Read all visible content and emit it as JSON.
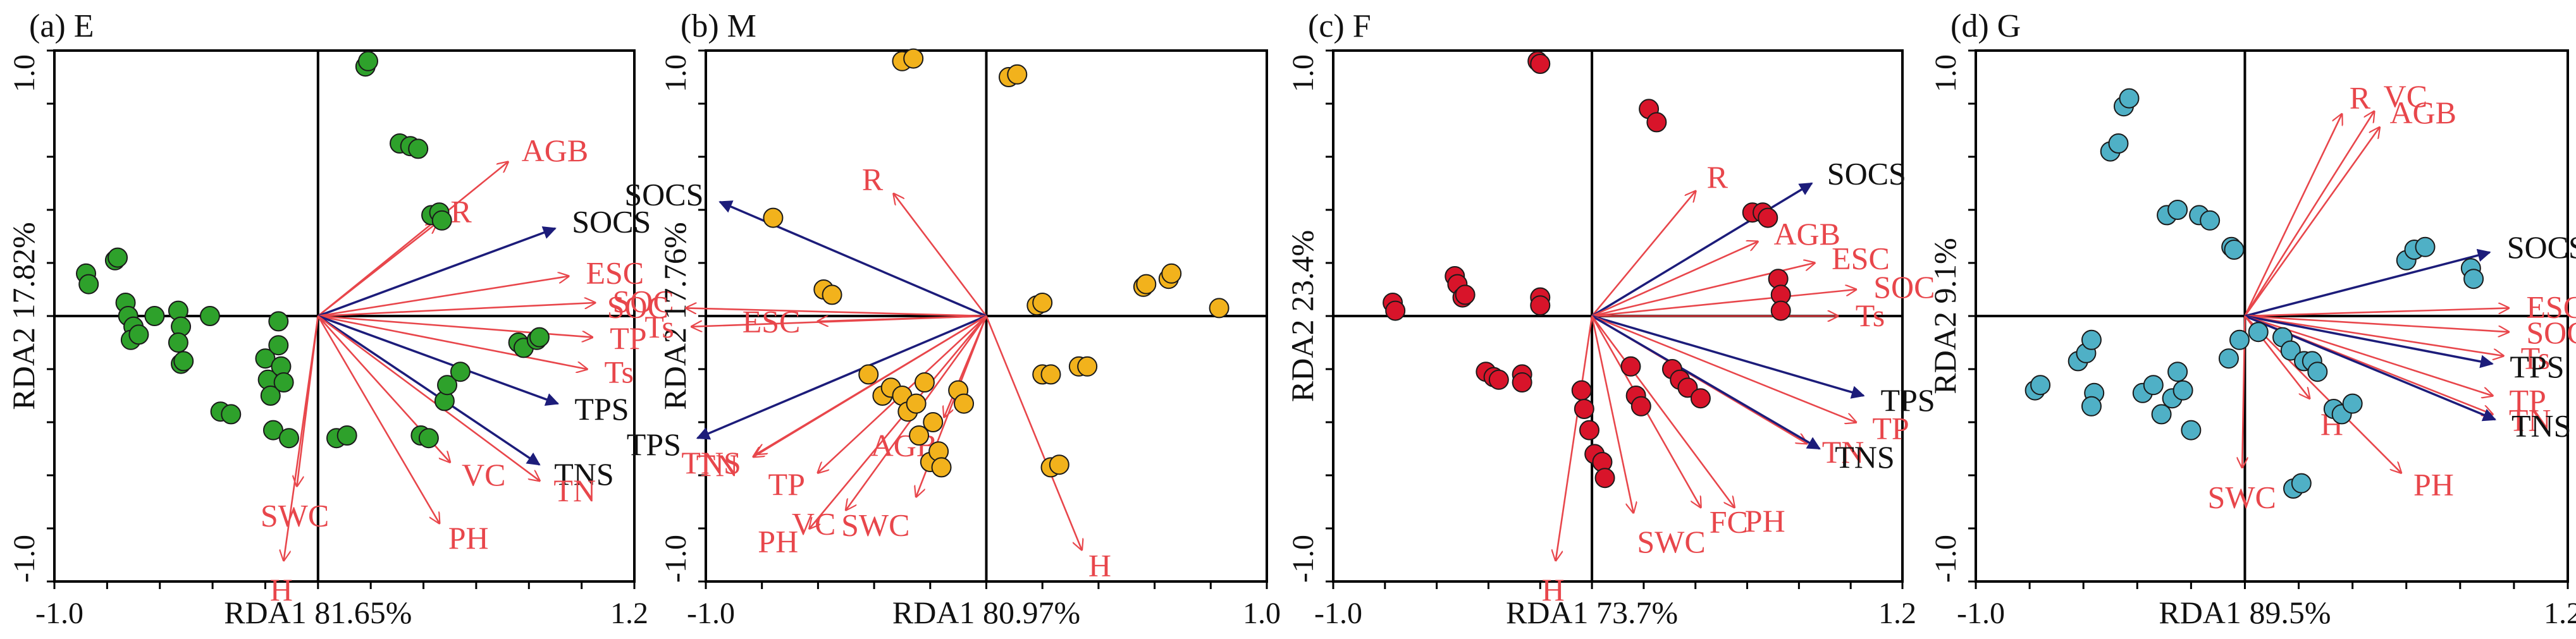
{
  "colors": {
    "explanatory": "#e8464b",
    "response": "#1c1c7a",
    "label_response": "#111111"
  },
  "chart_data": [
    {
      "type": "scatter",
      "panel_label": "(a) E",
      "xlabel": "RDA1 81.65%",
      "ylabel": "RDA2 17.82%",
      "xtick_labels": [
        "-1.0",
        "1.2"
      ],
      "ytick_labels": [
        "1.0",
        "-1.0"
      ],
      "xlim": [
        -1.0,
        1.2
      ],
      "ylim": [
        -1.0,
        1.0
      ],
      "point_color": "#2ea12b",
      "points": [
        [
          -0.88,
          0.16
        ],
        [
          -0.87,
          0.12
        ],
        [
          -0.77,
          0.21
        ],
        [
          -0.76,
          0.22
        ],
        [
          -0.73,
          0.05
        ],
        [
          -0.72,
          0.0
        ],
        [
          -0.7,
          -0.04
        ],
        [
          -0.71,
          -0.09
        ],
        [
          -0.68,
          -0.07
        ],
        [
          -0.62,
          0.0
        ],
        [
          -0.53,
          0.02
        ],
        [
          -0.52,
          -0.04
        ],
        [
          -0.53,
          -0.1
        ],
        [
          -0.52,
          -0.18
        ],
        [
          -0.51,
          -0.17
        ],
        [
          -0.41,
          0.0
        ],
        [
          -0.37,
          -0.36
        ],
        [
          -0.33,
          -0.37
        ],
        [
          -0.2,
          -0.16
        ],
        [
          -0.19,
          -0.24
        ],
        [
          -0.18,
          -0.3
        ],
        [
          -0.17,
          -0.43
        ],
        [
          -0.15,
          -0.02
        ],
        [
          -0.15,
          -0.11
        ],
        [
          -0.14,
          -0.19
        ],
        [
          -0.13,
          -0.25
        ],
        [
          -0.11,
          -0.46
        ],
        [
          0.07,
          -0.46
        ],
        [
          0.11,
          -0.45
        ],
        [
          0.18,
          0.94
        ],
        [
          0.19,
          0.96
        ],
        [
          0.31,
          0.65
        ],
        [
          0.35,
          0.64
        ],
        [
          0.38,
          0.63
        ],
        [
          0.39,
          -0.45
        ],
        [
          0.42,
          -0.46
        ],
        [
          0.43,
          0.38
        ],
        [
          0.46,
          0.39
        ],
        [
          0.47,
          0.36
        ],
        [
          0.48,
          -0.32
        ],
        [
          0.49,
          -0.26
        ],
        [
          0.54,
          -0.21
        ],
        [
          0.76,
          -0.1
        ],
        [
          0.78,
          -0.12
        ],
        [
          0.83,
          -0.09
        ],
        [
          0.84,
          -0.08
        ]
      ],
      "vectors": [
        {
          "name": "AGB",
          "x": 0.72,
          "y": 0.58,
          "kind": "explanatory"
        },
        {
          "name": "R",
          "x": 0.45,
          "y": 0.35,
          "kind": "explanatory"
        },
        {
          "name": "SOCS",
          "x": 0.9,
          "y": 0.33,
          "kind": "response"
        },
        {
          "name": "ESC",
          "x": 0.95,
          "y": 0.15,
          "kind": "explanatory"
        },
        {
          "name": "SOC",
          "x": 1.05,
          "y": 0.05,
          "kind": "explanatory"
        },
        {
          "name": "TP",
          "x": 1.04,
          "y": -0.08,
          "kind": "explanatory"
        },
        {
          "name": "Ts",
          "x": 1.02,
          "y": -0.2,
          "kind": "explanatory"
        },
        {
          "name": "TPS",
          "x": 0.91,
          "y": -0.33,
          "kind": "response"
        },
        {
          "name": "TNS",
          "x": 0.84,
          "y": -0.56,
          "kind": "response"
        },
        {
          "name": "VC",
          "x": 0.5,
          "y": -0.55,
          "kind": "explanatory"
        },
        {
          "name": "TN",
          "x": 0.84,
          "y": -0.62,
          "kind": "explanatory"
        },
        {
          "name": "PH",
          "x": 0.46,
          "y": -0.78,
          "kind": "explanatory"
        },
        {
          "name": "SWC",
          "x": -0.08,
          "y": -0.64,
          "kind": "explanatory"
        },
        {
          "name": "H",
          "x": -0.13,
          "y": -0.92,
          "kind": "explanatory"
        }
      ]
    },
    {
      "type": "scatter",
      "panel_label": "(b) M",
      "xlabel": "RDA1 80.97%",
      "ylabel": "RDA2 17.76%",
      "xtick_labels": [
        "-1.0",
        "1.0"
      ],
      "ytick_labels": [
        "1.0",
        "-1.0"
      ],
      "xlim": [
        -1.0,
        1.0
      ],
      "ylim": [
        -1.0,
        1.0
      ],
      "point_color": "#f2b21c",
      "points": [
        [
          -0.3,
          0.96
        ],
        [
          -0.26,
          0.97
        ],
        [
          0.08,
          0.9
        ],
        [
          0.11,
          0.91
        ],
        [
          -0.76,
          0.37
        ],
        [
          -0.58,
          0.1
        ],
        [
          -0.55,
          0.08
        ],
        [
          -0.42,
          -0.22
        ],
        [
          -0.37,
          -0.3
        ],
        [
          -0.34,
          -0.27
        ],
        [
          -0.3,
          -0.3
        ],
        [
          -0.28,
          -0.36
        ],
        [
          -0.25,
          -0.33
        ],
        [
          -0.22,
          -0.25
        ],
        [
          -0.24,
          -0.45
        ],
        [
          -0.19,
          -0.4
        ],
        [
          -0.2,
          -0.55
        ],
        [
          -0.17,
          -0.51
        ],
        [
          -0.16,
          -0.57
        ],
        [
          -0.1,
          -0.28
        ],
        [
          -0.08,
          -0.33
        ],
        [
          0.18,
          0.04
        ],
        [
          0.2,
          0.05
        ],
        [
          0.2,
          -0.22
        ],
        [
          0.23,
          -0.22
        ],
        [
          0.23,
          -0.57
        ],
        [
          0.26,
          -0.56
        ],
        [
          0.33,
          -0.19
        ],
        [
          0.36,
          -0.19
        ],
        [
          0.56,
          0.11
        ],
        [
          0.57,
          0.12
        ],
        [
          0.65,
          0.14
        ],
        [
          0.66,
          0.16
        ],
        [
          0.83,
          0.03
        ]
      ],
      "vectors": [
        {
          "name": "R",
          "x": -0.33,
          "y": 0.46,
          "kind": "explanatory"
        },
        {
          "name": "SOCS",
          "x": -0.95,
          "y": 0.43,
          "kind": "response"
        },
        {
          "name": "SOC",
          "x": -1.07,
          "y": 0.03,
          "kind": "explanatory"
        },
        {
          "name": "Ts",
          "x": -1.05,
          "y": -0.04,
          "kind": "explanatory"
        },
        {
          "name": "ESC",
          "x": -0.6,
          "y": -0.02,
          "kind": "explanatory"
        },
        {
          "name": "TPS",
          "x": -1.03,
          "y": -0.46,
          "kind": "response"
        },
        {
          "name": "TNS",
          "x": -0.82,
          "y": -0.52,
          "kind": "explanatory"
        },
        {
          "name": "TN",
          "x": -0.83,
          "y": -0.53,
          "kind": "explanatory"
        },
        {
          "name": "TP",
          "x": -0.6,
          "y": -0.59,
          "kind": "explanatory"
        },
        {
          "name": "AGB",
          "x": -0.15,
          "y": -0.38,
          "kind": "explanatory"
        },
        {
          "name": "VC",
          "x": -0.5,
          "y": -0.73,
          "kind": "explanatory"
        },
        {
          "name": "PH",
          "x": -0.63,
          "y": -0.8,
          "kind": "explanatory"
        },
        {
          "name": "SWC",
          "x": -0.25,
          "y": -0.68,
          "kind": "explanatory"
        },
        {
          "name": "H",
          "x": 0.34,
          "y": -0.88,
          "kind": "explanatory"
        }
      ]
    },
    {
      "type": "scatter",
      "panel_label": "(c) F",
      "xlabel": "RDA1 73.7%",
      "ylabel": "RDA2 23.4%",
      "xtick_labels": [
        "-1.0",
        "1.2"
      ],
      "ytick_labels": [
        "1.0",
        "-1.0"
      ],
      "xlim": [
        -1.0,
        1.2
      ],
      "ylim": [
        -1.0,
        1.0
      ],
      "point_color": "#d8142a",
      "points": [
        [
          -0.77,
          0.05
        ],
        [
          -0.76,
          0.02
        ],
        [
          -0.53,
          0.15
        ],
        [
          -0.52,
          0.12
        ],
        [
          -0.5,
          0.07
        ],
        [
          -0.49,
          0.08
        ],
        [
          -0.41,
          -0.21
        ],
        [
          -0.38,
          -0.23
        ],
        [
          -0.36,
          -0.24
        ],
        [
          -0.27,
          -0.22
        ],
        [
          -0.27,
          -0.25
        ],
        [
          -0.21,
          0.96
        ],
        [
          -0.2,
          0.95
        ],
        [
          -0.2,
          0.07
        ],
        [
          -0.2,
          0.04
        ],
        [
          -0.04,
          -0.28
        ],
        [
          -0.03,
          -0.35
        ],
        [
          -0.01,
          -0.43
        ],
        [
          0.01,
          -0.52
        ],
        [
          0.04,
          -0.55
        ],
        [
          0.05,
          -0.61
        ],
        [
          0.15,
          -0.19
        ],
        [
          0.17,
          -0.3
        ],
        [
          0.19,
          -0.34
        ],
        [
          0.22,
          0.78
        ],
        [
          0.25,
          0.73
        ],
        [
          0.31,
          -0.2
        ],
        [
          0.34,
          -0.24
        ],
        [
          0.37,
          -0.27
        ],
        [
          0.42,
          -0.31
        ],
        [
          0.62,
          0.39
        ],
        [
          0.66,
          0.39
        ],
        [
          0.68,
          0.37
        ],
        [
          0.72,
          0.14
        ],
        [
          0.73,
          0.08
        ],
        [
          0.73,
          0.02
        ]
      ],
      "vectors": [
        {
          "name": "R",
          "x": 0.4,
          "y": 0.47,
          "kind": "explanatory"
        },
        {
          "name": "SOCS",
          "x": 0.85,
          "y": 0.5,
          "kind": "response"
        },
        {
          "name": "AGB",
          "x": 0.64,
          "y": 0.28,
          "kind": "explanatory"
        },
        {
          "name": "ESC",
          "x": 0.86,
          "y": 0.2,
          "kind": "explanatory"
        },
        {
          "name": "SOC",
          "x": 1.02,
          "y": 0.1,
          "kind": "explanatory"
        },
        {
          "name": "Ts",
          "x": 0.95,
          "y": 0.0,
          "kind": "explanatory"
        },
        {
          "name": "TPS",
          "x": 1.05,
          "y": -0.3,
          "kind": "response"
        },
        {
          "name": "TP",
          "x": 1.02,
          "y": -0.4,
          "kind": "explanatory"
        },
        {
          "name": "TN",
          "x": 0.83,
          "y": -0.48,
          "kind": "explanatory"
        },
        {
          "name": "TNS",
          "x": 0.88,
          "y": -0.5,
          "kind": "response"
        },
        {
          "name": "PH",
          "x": 0.55,
          "y": -0.72,
          "kind": "explanatory"
        },
        {
          "name": "FC",
          "x": 0.42,
          "y": -0.72,
          "kind": "explanatory"
        },
        {
          "name": "SWC",
          "x": 0.16,
          "y": -0.74,
          "kind": "explanatory"
        },
        {
          "name": "H",
          "x": -0.14,
          "y": -0.92,
          "kind": "explanatory"
        }
      ]
    },
    {
      "type": "scatter",
      "panel_label": "(d) G",
      "xlabel": "RDA1 89.5%",
      "ylabel": "RDA2 9.1%",
      "xtick_labels": [
        "-1.0",
        "1.2"
      ],
      "ytick_labels": [
        "1.0",
        "-1.0"
      ],
      "xlim": [
        -1.0,
        1.2
      ],
      "ylim": [
        -1.0,
        1.0
      ],
      "point_color": "#4fb0c6",
      "points": [
        [
          -0.45,
          0.79
        ],
        [
          -0.43,
          0.82
        ],
        [
          -0.5,
          0.62
        ],
        [
          -0.47,
          0.65
        ],
        [
          -0.29,
          0.38
        ],
        [
          -0.25,
          0.4
        ],
        [
          -0.17,
          0.38
        ],
        [
          -0.13,
          0.36
        ],
        [
          -0.05,
          0.26
        ],
        [
          -0.04,
          0.25
        ],
        [
          -0.78,
          -0.28
        ],
        [
          -0.76,
          -0.26
        ],
        [
          -0.62,
          -0.17
        ],
        [
          -0.59,
          -0.14
        ],
        [
          -0.57,
          -0.09
        ],
        [
          -0.56,
          -0.29
        ],
        [
          -0.57,
          -0.34
        ],
        [
          -0.38,
          -0.29
        ],
        [
          -0.34,
          -0.26
        ],
        [
          -0.31,
          -0.37
        ],
        [
          -0.27,
          -0.31
        ],
        [
          -0.25,
          -0.21
        ],
        [
          -0.23,
          -0.28
        ],
        [
          -0.2,
          -0.43
        ],
        [
          -0.06,
          -0.16
        ],
        [
          -0.02,
          -0.09
        ],
        [
          0.05,
          -0.06
        ],
        [
          0.14,
          -0.08
        ],
        [
          0.17,
          -0.13
        ],
        [
          0.22,
          -0.17
        ],
        [
          0.25,
          -0.17
        ],
        [
          0.27,
          -0.21
        ],
        [
          0.33,
          -0.35
        ],
        [
          0.36,
          -0.37
        ],
        [
          0.4,
          -0.33
        ],
        [
          0.18,
          -0.65
        ],
        [
          0.21,
          -0.63
        ],
        [
          0.6,
          0.21
        ],
        [
          0.63,
          0.25
        ],
        [
          0.67,
          0.26
        ],
        [
          0.84,
          0.18
        ],
        [
          0.85,
          0.14
        ]
      ],
      "vectors": [
        {
          "name": "R",
          "x": 0.36,
          "y": 0.76,
          "kind": "explanatory"
        },
        {
          "name": "VC",
          "x": 0.48,
          "y": 0.77,
          "kind": "explanatory"
        },
        {
          "name": "AGB",
          "x": 0.5,
          "y": 0.71,
          "kind": "explanatory"
        },
        {
          "name": "SOCS",
          "x": 0.91,
          "y": 0.24,
          "kind": "response"
        },
        {
          "name": "ESC",
          "x": 0.98,
          "y": 0.03,
          "kind": "explanatory"
        },
        {
          "name": "SOC",
          "x": 0.98,
          "y": -0.06,
          "kind": "explanatory"
        },
        {
          "name": "Ts",
          "x": 0.96,
          "y": -0.15,
          "kind": "explanatory"
        },
        {
          "name": "TPS",
          "x": 0.92,
          "y": -0.18,
          "kind": "response"
        },
        {
          "name": "TP",
          "x": 0.92,
          "y": -0.3,
          "kind": "explanatory"
        },
        {
          "name": "TN",
          "x": 0.92,
          "y": -0.37,
          "kind": "explanatory"
        },
        {
          "name": "TNS",
          "x": 0.93,
          "y": -0.39,
          "kind": "response"
        },
        {
          "name": "H",
          "x": 0.24,
          "y": -0.31,
          "kind": "explanatory"
        },
        {
          "name": "PH",
          "x": 0.58,
          "y": -0.59,
          "kind": "explanatory"
        },
        {
          "name": "SWC",
          "x": -0.01,
          "y": -0.57,
          "kind": "explanatory"
        }
      ]
    }
  ]
}
